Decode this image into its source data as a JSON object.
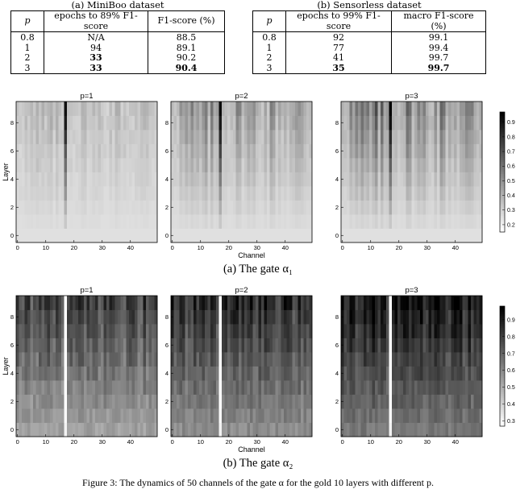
{
  "tables": [
    {
      "caption": "(a) MiniBoo dataset",
      "headers": [
        "p",
        "epochs to 89% F1-score",
        "F1-score (%)"
      ],
      "rows": [
        {
          "p": "0.8",
          "epochs": "N/A",
          "score": "88.5",
          "bold_epochs": false,
          "bold_score": false
        },
        {
          "p": "1",
          "epochs": "94",
          "score": "89.1",
          "bold_epochs": false,
          "bold_score": false
        },
        {
          "p": "2",
          "epochs": "33",
          "score": "90.2",
          "bold_epochs": true,
          "bold_score": false
        },
        {
          "p": "3",
          "epochs": "33",
          "score": "90.4",
          "bold_epochs": true,
          "bold_score": true
        }
      ]
    },
    {
      "caption": "(b) Sensorless dataset",
      "headers": [
        "p",
        "epochs to 99% F1-score",
        "macro F1-score (%)"
      ],
      "rows": [
        {
          "p": "0.8",
          "epochs": "92",
          "score": "99.1",
          "bold_epochs": false,
          "bold_score": false
        },
        {
          "p": "1",
          "epochs": "77",
          "score": "99.4",
          "bold_epochs": false,
          "bold_score": false
        },
        {
          "p": "2",
          "epochs": "41",
          "score": "99.7",
          "bold_epochs": false,
          "bold_score": false
        },
        {
          "p": "3",
          "epochs": "35",
          "score": "99.7",
          "bold_epochs": true,
          "bold_score": true
        }
      ]
    }
  ],
  "figures": [
    {
      "subcaption": "(a) The gate α₁",
      "panel_titles": [
        "p=1",
        "p=2",
        "p=3"
      ],
      "xlabel": "Channel",
      "ylabel": "Layer",
      "x_ticks": [
        "0",
        "10",
        "20",
        "30",
        "40"
      ],
      "y_ticks": [
        "0",
        "2",
        "4",
        "6",
        "8"
      ],
      "colorbar_ticks": [
        "0.9",
        "0.8",
        "0.7",
        "0.6",
        "0.5",
        "0.4",
        "0.3",
        "0.2"
      ]
    },
    {
      "subcaption": "(b) The gate α₂",
      "panel_titles": [
        "p=1",
        "p=2",
        "p=3"
      ],
      "xlabel": "Channel",
      "ylabel": "Layer",
      "x_ticks": [
        "0",
        "10",
        "20",
        "30",
        "40"
      ],
      "y_ticks": [
        "0",
        "2",
        "4",
        "6",
        "8"
      ],
      "colorbar_ticks": [
        "0.9",
        "0.8",
        "0.7",
        "0.6",
        "0.5",
        "0.4",
        "0.3"
      ]
    }
  ],
  "figure_caption": "Figure 3: The dynamics of 50 channels of the gate α for the gold 10 layers with different p."
}
